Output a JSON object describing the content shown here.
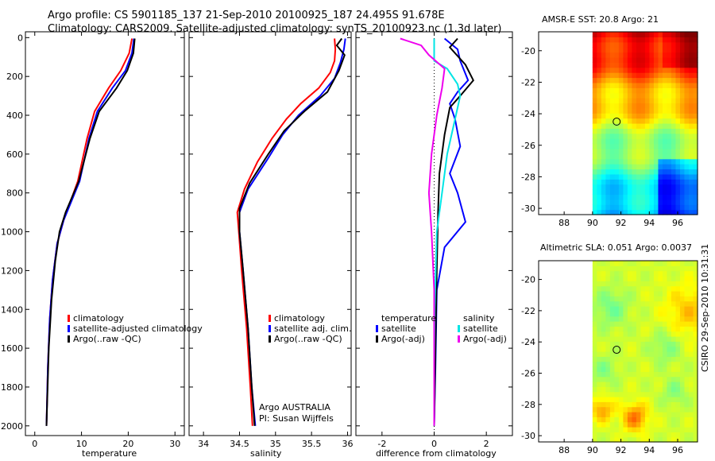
{
  "header": {
    "line1": "Argo profile: CS 5901185_137 21-Sep-2010 20100925_187 24.495S 91.678E",
    "line2": "Climatology: CARS2009. Satellite-adjusted climatology: synTS_20100923.nc (1.3d later)"
  },
  "colors": {
    "climatology": "#ff0000",
    "satellite": "#0000ff",
    "argo": "#000000",
    "sal_satellite": "#00e5e5",
    "sal_argo": "#ee00ee"
  },
  "chart_data": [
    {
      "type": "line",
      "id": "temperature",
      "xlabel": "temperature",
      "xlim": [
        -2,
        32
      ],
      "ylim": [
        2050,
        -30
      ],
      "xticks": [
        0,
        10,
        20,
        30
      ],
      "yticks": [
        0,
        200,
        400,
        600,
        800,
        1000,
        1200,
        1400,
        1600,
        1800,
        2000
      ],
      "legend": [
        "climatology",
        "satellite-adjusted climatology",
        "Argo(..raw -QC)"
      ],
      "series": [
        {
          "name": "climatology",
          "color": "red",
          "points": [
            [
              20.8,
              5
            ],
            [
              20.2,
              80
            ],
            [
              18.4,
              170
            ],
            [
              15.8,
              260
            ],
            [
              12.8,
              380
            ],
            [
              11.2,
              520
            ],
            [
              9.2,
              740
            ],
            [
              6.2,
              940
            ],
            [
              4.8,
              1060
            ],
            [
              3.8,
              1250
            ],
            [
              3.2,
              1450
            ],
            [
              2.8,
              1700
            ],
            [
              2.5,
              2000
            ]
          ]
        },
        {
          "name": "satellite-adjusted climatology",
          "color": "blue",
          "points": [
            [
              21.2,
              5
            ],
            [
              20.8,
              80
            ],
            [
              19.4,
              170
            ],
            [
              16.6,
              260
            ],
            [
              13.4,
              380
            ],
            [
              11.6,
              520
            ],
            [
              9.6,
              740
            ],
            [
              6.2,
              940
            ],
            [
              4.8,
              1060
            ],
            [
              3.8,
              1250
            ],
            [
              3.2,
              1450
            ],
            [
              2.8,
              1700
            ],
            [
              2.5,
              2000
            ]
          ]
        },
        {
          "name": "Argo(..raw -QC)",
          "color": "black",
          "points": [
            [
              21.4,
              5
            ],
            [
              21.1,
              80
            ],
            [
              19.8,
              170
            ],
            [
              17.5,
              260
            ],
            [
              13.8,
              380
            ],
            [
              11.8,
              520
            ],
            [
              9.4,
              740
            ],
            [
              6.6,
              900
            ],
            [
              5.3,
              1000
            ],
            [
              4.4,
              1150
            ],
            [
              3.6,
              1350
            ],
            [
              3.0,
              1600
            ],
            [
              2.5,
              2000
            ]
          ]
        }
      ]
    },
    {
      "type": "line",
      "id": "salinity",
      "xlabel": "salinity",
      "xlim": [
        33.8,
        36.05
      ],
      "ylim": [
        2050,
        -30
      ],
      "xticks": [
        34,
        34.5,
        35,
        35.5,
        36
      ],
      "legend": [
        "climatology",
        "satellite adj. clim.",
        "Argo(..raw -QC)"
      ],
      "annotations": [
        "Argo AUSTRALIA",
        "PI: Susan Wijffels"
      ],
      "series": [
        {
          "name": "climatology",
          "color": "red",
          "points": [
            [
              35.82,
              5
            ],
            [
              35.83,
              60
            ],
            [
              35.82,
              120
            ],
            [
              35.76,
              180
            ],
            [
              35.6,
              260
            ],
            [
              35.35,
              340
            ],
            [
              35.15,
              420
            ],
            [
              34.95,
              520
            ],
            [
              34.75,
              640
            ],
            [
              34.57,
              780
            ],
            [
              34.47,
              900
            ],
            [
              34.49,
              1000
            ],
            [
              34.53,
              1200
            ],
            [
              34.6,
              1500
            ],
            [
              34.65,
              1800
            ],
            [
              34.68,
              2000
            ]
          ]
        },
        {
          "name": "satellite adj. clim.",
          "color": "blue",
          "points": [
            [
              35.97,
              5
            ],
            [
              35.95,
              60
            ],
            [
              35.9,
              130
            ],
            [
              35.82,
              210
            ],
            [
              35.62,
              300
            ],
            [
              35.32,
              400
            ],
            [
              35.1,
              500
            ],
            [
              34.9,
              620
            ],
            [
              34.62,
              780
            ],
            [
              34.5,
              900
            ],
            [
              34.5,
              1000
            ],
            [
              34.55,
              1200
            ],
            [
              34.62,
              1500
            ],
            [
              34.67,
              1800
            ],
            [
              34.72,
              2000
            ]
          ]
        },
        {
          "name": "Argo(..raw -QC)",
          "color": "black",
          "points": [
            [
              35.92,
              5
            ],
            [
              35.85,
              40
            ],
            [
              35.96,
              90
            ],
            [
              35.88,
              170
            ],
            [
              35.72,
              280
            ],
            [
              35.4,
              380
            ],
            [
              35.12,
              480
            ],
            [
              34.9,
              600
            ],
            [
              34.64,
              750
            ],
            [
              34.5,
              880
            ],
            [
              34.5,
              1000
            ],
            [
              34.55,
              1200
            ],
            [
              34.62,
              1500
            ],
            [
              34.67,
              1800
            ],
            [
              34.71,
              2000
            ]
          ]
        }
      ]
    },
    {
      "type": "line",
      "id": "difference",
      "xlabel": "difference from climatology",
      "xlim": [
        -3,
        3
      ],
      "ylim": [
        2050,
        -30
      ],
      "xticks": [
        -2,
        0,
        2
      ],
      "legend_groups": [
        {
          "title": "temperature",
          "items": [
            "satellite",
            "Argo(-adj)"
          ]
        },
        {
          "title": "salinity",
          "items": [
            "satellite",
            "Argo(-adj)"
          ]
        }
      ],
      "series": [
        {
          "name": "temperature satellite",
          "color": "blue",
          "points": [
            [
              0.4,
              5
            ],
            [
              0.9,
              60
            ],
            [
              1.0,
              120
            ],
            [
              1.3,
              220
            ],
            [
              0.9,
              280
            ],
            [
              0.6,
              340
            ],
            [
              0.8,
              420
            ],
            [
              1.0,
              560
            ],
            [
              0.6,
              700
            ],
            [
              0.9,
              800
            ],
            [
              1.2,
              950
            ],
            [
              0.4,
              1080
            ],
            [
              0.1,
              1300
            ],
            [
              0.05,
              1700
            ],
            [
              0,
              2000
            ]
          ]
        },
        {
          "name": "temperature Argo(-adj)",
          "color": "black",
          "points": [
            [
              0.9,
              5
            ],
            [
              0.6,
              50
            ],
            [
              1.2,
              140
            ],
            [
              1.5,
              220
            ],
            [
              1.0,
              300
            ],
            [
              0.6,
              360
            ],
            [
              0.4,
              500
            ],
            [
              0.2,
              700
            ],
            [
              0.15,
              900
            ],
            [
              0.1,
              1200
            ],
            [
              0.05,
              1600
            ],
            [
              0,
              2000
            ]
          ]
        },
        {
          "name": "salinity satellite",
          "color": "cyan",
          "points": [
            [
              0,
              5
            ],
            [
              0,
              120
            ],
            [
              0.5,
              160
            ],
            [
              0.9,
              240
            ],
            [
              1.0,
              300
            ],
            [
              0.8,
              420
            ],
            [
              0.5,
              600
            ],
            [
              0.3,
              800
            ],
            [
              0.1,
              1000
            ],
            [
              0.02,
              1400
            ],
            [
              0,
              1700
            ],
            [
              0,
              2000
            ]
          ]
        },
        {
          "name": "salinity Argo(-adj)",
          "color": "magenta",
          "points": [
            [
              -1.3,
              5
            ],
            [
              -0.5,
              40
            ],
            [
              -0.2,
              90
            ],
            [
              0.4,
              160
            ],
            [
              0.3,
              260
            ],
            [
              0.1,
              400
            ],
            [
              -0.1,
              600
            ],
            [
              -0.2,
              800
            ],
            [
              -0.1,
              1000
            ],
            [
              0,
              1300
            ],
            [
              0,
              1700
            ],
            [
              0,
              2000
            ]
          ]
        }
      ]
    },
    {
      "type": "heatmap",
      "id": "sst",
      "title": "AMSR-E SST: 20.8 Argo: 21",
      "xlim": [
        86.2,
        97.4
      ],
      "ylim": [
        -30.4,
        -18.8
      ],
      "xticks": [
        88,
        90,
        92,
        94,
        96
      ],
      "yticks": [
        -20,
        -22,
        -24,
        -26,
        -28,
        -30
      ],
      "data_xrange": [
        90,
        97.4
      ],
      "marker": [
        91.7,
        -24.5
      ]
    },
    {
      "type": "heatmap",
      "id": "sla",
      "title": "Altimetric SLA: 0.051 Argo: 0.0037",
      "xlim": [
        86.2,
        97.4
      ],
      "ylim": [
        -30.4,
        -18.8
      ],
      "xticks": [
        88,
        90,
        92,
        94,
        96
      ],
      "yticks": [
        -20,
        -22,
        -24,
        -26,
        -28,
        -30
      ],
      "data_xrange": [
        90,
        97.4
      ],
      "marker": [
        91.7,
        -24.5
      ]
    }
  ],
  "side_label": "CSIRO 29-Sep-2010 10:31:31"
}
